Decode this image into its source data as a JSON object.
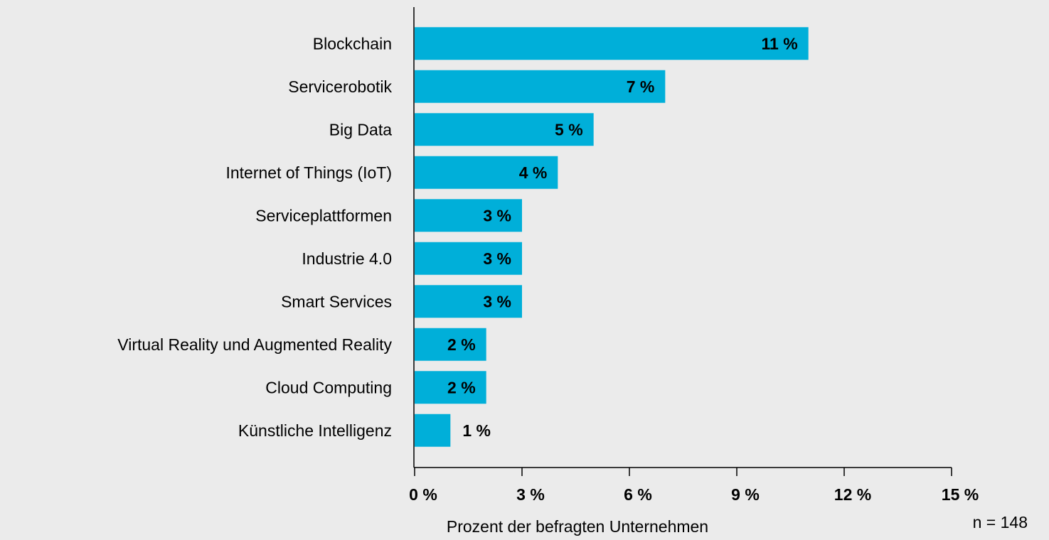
{
  "chart_data": {
    "type": "bar",
    "orientation": "horizontal",
    "categories": [
      "Blockchain",
      "Servicerobotik",
      "Big Data",
      "Internet of Things (IoT)",
      "Serviceplattformen",
      "Industrie 4.0",
      "Smart Services",
      "Virtual Reality und Augmented Reality",
      "Cloud Computing",
      "Künstliche Intelligenz"
    ],
    "values": [
      11,
      7,
      5,
      4,
      3,
      3,
      3,
      2,
      2,
      1
    ],
    "value_labels": [
      "11 %",
      "7 %",
      "5 %",
      "4 %",
      "3 %",
      "3 %",
      "3 %",
      "2 %",
      "2 %",
      "1 %"
    ],
    "color": "#00afd9",
    "xlim": [
      0,
      15
    ],
    "xticks": [
      {
        "value": 0,
        "label": "0 %"
      },
      {
        "value": 3,
        "label": "3 %"
      },
      {
        "value": 6,
        "label": "6 %"
      },
      {
        "value": 9,
        "label": "9 %"
      },
      {
        "value": 12,
        "label": "12 %"
      },
      {
        "value": 15,
        "label": "15 %"
      }
    ],
    "x_label": "Prozent der befragten Unternehmen",
    "annotation": "n = 148"
  }
}
